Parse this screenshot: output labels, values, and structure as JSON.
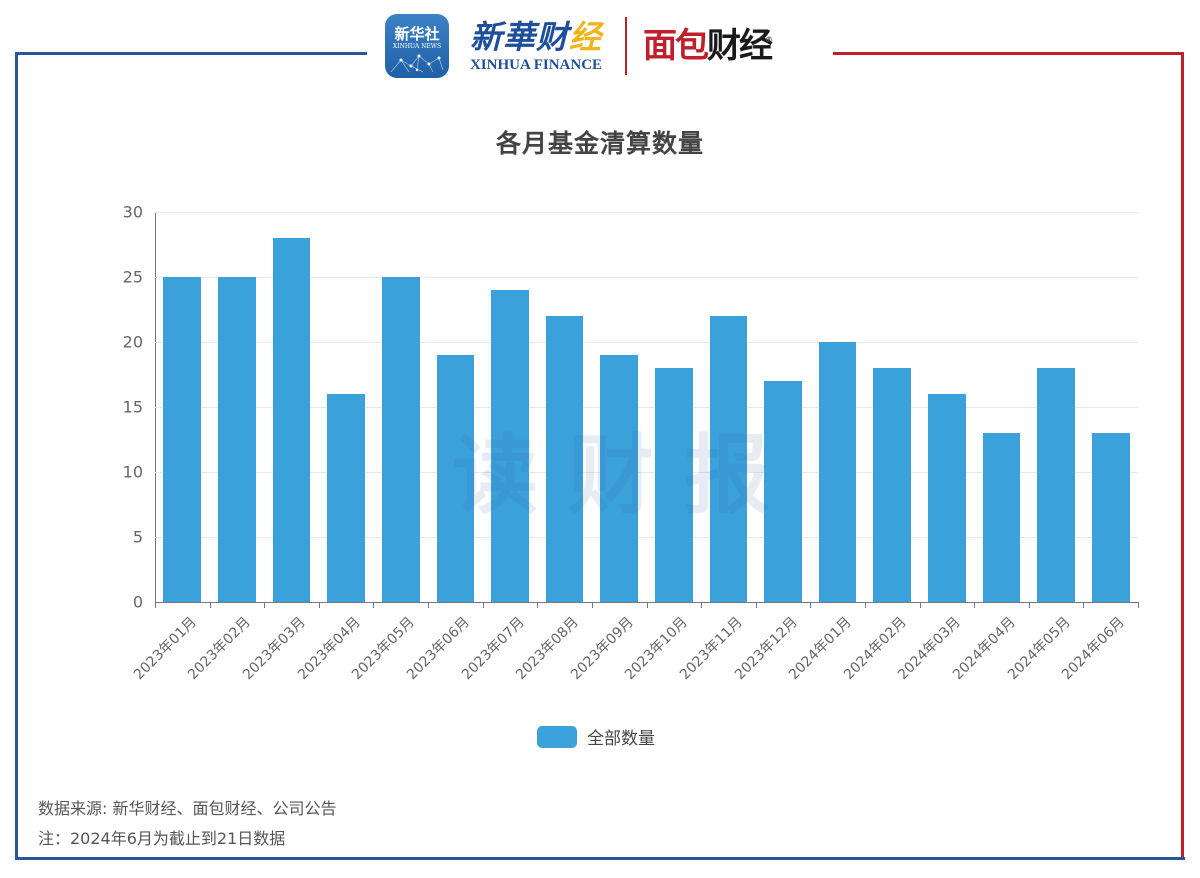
{
  "header": {
    "xinhua_app": {
      "cn": "新华社",
      "en": "XINHUA NEWS"
    },
    "xinhua_finance": {
      "cn_part1": "新華财",
      "cn_gold": "经",
      "en": "XINHUA FINANCE"
    },
    "mianbao": {
      "red": "面包",
      "black": "财经",
      "reg_mark": "®"
    }
  },
  "watermark": "读财报",
  "colors": {
    "bar": "#3aa1db",
    "frame_blue": "#2a5597",
    "frame_red": "#c0202b"
  },
  "chart_data": {
    "type": "bar",
    "title": "各月基金清算数量",
    "categories": [
      "2023年01月",
      "2023年02月",
      "2023年03月",
      "2023年04月",
      "2023年05月",
      "2023年06月",
      "2023年07月",
      "2023年08月",
      "2023年09月",
      "2023年10月",
      "2023年11月",
      "2023年12月",
      "2024年01月",
      "2024年02月",
      "2024年03月",
      "2024年04月",
      "2024年05月",
      "2024年06月"
    ],
    "series": [
      {
        "name": "全部数量",
        "values": [
          25,
          25,
          28,
          16,
          25,
          19,
          24,
          22,
          19,
          18,
          22,
          17,
          20,
          18,
          16,
          13,
          18,
          13
        ]
      }
    ],
    "xlabel": "",
    "ylabel": "",
    "ylim": [
      0,
      30
    ],
    "yticks": [
      "0",
      "5",
      "10",
      "15",
      "20",
      "25",
      "30"
    ],
    "grid": true,
    "legend_position": "bottom"
  },
  "footer": {
    "source": "数据来源: 新华财经、面包财经、公司公告",
    "note": "注：2024年6月为截止到21日数据"
  }
}
